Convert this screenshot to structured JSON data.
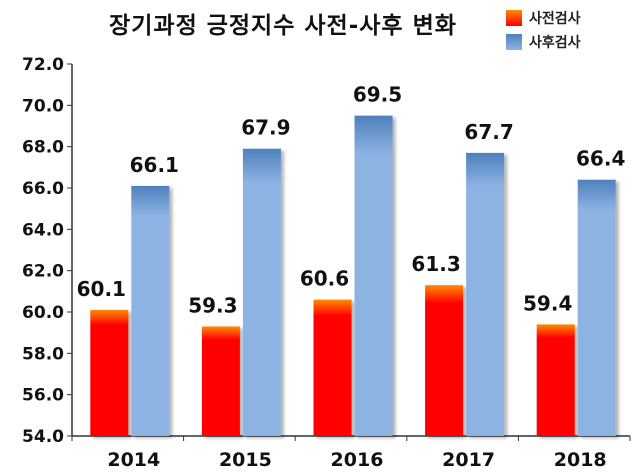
{
  "chart_data": {
    "type": "bar",
    "title": "장기과정 긍정지수 사전-사후 변화",
    "categories": [
      "2014",
      "2015",
      "2016",
      "2017",
      "2018"
    ],
    "series": [
      {
        "name": "사전검사",
        "values": [
          60.1,
          59.3,
          60.6,
          61.3,
          59.4
        ],
        "color": "#ff0000",
        "color_top": "#ff8c00"
      },
      {
        "name": "사후검사",
        "values": [
          66.1,
          67.9,
          69.5,
          67.7,
          66.4
        ],
        "color": "#8db3e2",
        "color_top": "#4f81bd"
      }
    ],
    "ylim": [
      54.0,
      72.0
    ],
    "yticks": [
      "54.0",
      "56.0",
      "58.0",
      "60.0",
      "62.0",
      "64.0",
      "66.0",
      "68.0",
      "70.0",
      "72.0"
    ],
    "ytick_values": [
      54,
      56,
      58,
      60,
      62,
      64,
      66,
      68,
      70,
      72
    ],
    "grid": false,
    "legend_position": "top-right",
    "xlabel": "",
    "ylabel": ""
  }
}
